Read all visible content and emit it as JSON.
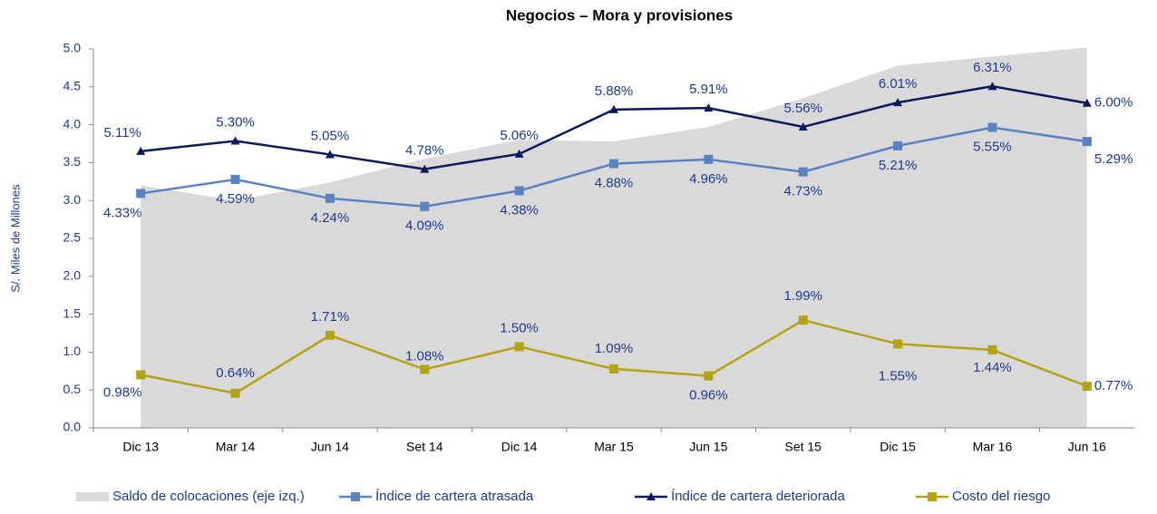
{
  "chart_data": {
    "type": "line",
    "title": "Negocios – Mora y provisiones",
    "y_label": "S/. Miles de Millones",
    "categories": [
      "Dic 13",
      "Mar 14",
      "Jun 14",
      "Set 14",
      "Dic 14",
      "Mar 15",
      "Jun 15",
      "Set 15",
      "Dic 15",
      "Mar 16",
      "Jun 16"
    ],
    "ylim": [
      0,
      5
    ],
    "yticks": [
      {
        "value": 0,
        "label": "0.0"
      },
      {
        "value": 0.5,
        "label": "0.5"
      },
      {
        "value": 1,
        "label": "1.0"
      },
      {
        "value": 1.5,
        "label": "1.5"
      },
      {
        "value": 2,
        "label": "2.0"
      },
      {
        "value": 2.5,
        "label": "2.5"
      },
      {
        "value": 3,
        "label": "3.0"
      },
      {
        "value": 3.5,
        "label": "3.5"
      },
      {
        "value": 4,
        "label": "4.0"
      },
      {
        "value": 4.5,
        "label": "4.5"
      },
      {
        "value": 5,
        "label": "5.0"
      }
    ],
    "y2lim": [
      0,
      7
    ],
    "series": [
      {
        "name": "Saldo de colocaciones (eje izq.)",
        "style": "area",
        "color": "#d9d9d9",
        "values": [
          3.2,
          3.0,
          3.24,
          3.55,
          3.8,
          3.78,
          3.97,
          4.35,
          4.78,
          4.9,
          5.02
        ]
      },
      {
        "name": "Índice de cartera atrasada",
        "style": "line",
        "marker": "square",
        "color": "#5a82c2",
        "axis": "y2",
        "values": [
          4.33,
          4.59,
          4.24,
          4.09,
          4.38,
          4.88,
          4.96,
          4.73,
          5.21,
          5.55,
          5.29
        ],
        "value_labels": [
          "4.33%",
          "4.59%",
          "4.24%",
          "4.09%",
          "4.38%",
          "4.88%",
          "4.96%",
          "4.73%",
          "5.21%",
          "5.55%",
          "5.29%"
        ]
      },
      {
        "name": "Índice de cartera deteriorada",
        "style": "line",
        "marker": "triangle",
        "color": "#0c1a5b",
        "axis": "y2",
        "values": [
          5.11,
          5.3,
          5.05,
          4.78,
          5.06,
          5.88,
          5.91,
          5.56,
          6.01,
          6.31,
          6.0
        ],
        "value_labels": [
          "5.11%",
          "5.30%",
          "5.05%",
          "4.78%",
          "5.06%",
          "5.88%",
          "5.91%",
          "5.56%",
          "6.01%",
          "6.31%",
          "6.00%"
        ]
      },
      {
        "name": "Costo del riesgo",
        "style": "line",
        "marker": "square",
        "color": "#b3a315",
        "axis": "y2",
        "values": [
          0.98,
          0.64,
          1.71,
          1.08,
          1.5,
          1.09,
          0.96,
          1.99,
          1.55,
          1.44,
          0.77
        ],
        "value_labels": [
          "0.98%",
          "0.64%",
          "1.71%",
          "1.08%",
          "1.50%",
          "1.09%",
          "0.96%",
          "1.99%",
          "1.55%",
          "1.44%",
          "0.77%"
        ]
      }
    ]
  }
}
